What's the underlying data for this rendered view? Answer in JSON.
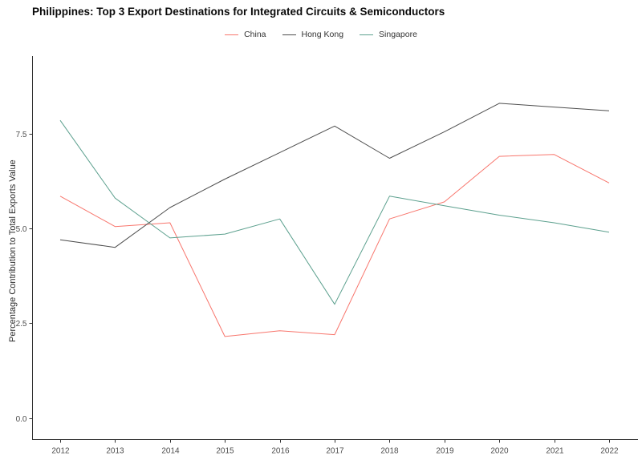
{
  "chart_data": {
    "type": "line",
    "title": "Philippines: Top 3 Export Destinations for Integrated Circuits & Semiconductors",
    "xlabel": "",
    "ylabel": "Percentage Contribution to Total Exports Value",
    "x": [
      2012,
      2013,
      2014,
      2015,
      2016,
      2017,
      2018,
      2019,
      2020,
      2021,
      2022
    ],
    "series": [
      {
        "name": "China",
        "color": "#f8766d",
        "values": [
          5.85,
          5.05,
          5.15,
          2.15,
          2.3,
          2.2,
          5.25,
          5.7,
          6.9,
          6.95,
          6.2
        ]
      },
      {
        "name": "Hong Kong",
        "color": "#4d4d4d",
        "values": [
          4.7,
          4.5,
          5.55,
          6.3,
          7.0,
          7.7,
          6.85,
          7.55,
          8.3,
          8.2,
          8.1
        ]
      },
      {
        "name": "Singapore",
        "color": "#5ca08e",
        "values": [
          7.85,
          5.8,
          4.75,
          4.85,
          5.25,
          3.0,
          5.85,
          5.6,
          5.35,
          5.15,
          4.9
        ]
      }
    ],
    "yticks": [
      0.0,
      2.5,
      5.0,
      7.5
    ],
    "ytick_labels": [
      "0.0",
      "2.5",
      "5.0",
      "7.5"
    ],
    "xtick_labels": [
      "2012",
      "2013",
      "2014",
      "2015",
      "2016",
      "2017",
      "2018",
      "2019",
      "2020",
      "2021",
      "2022"
    ],
    "ylim": [
      0,
      9.6
    ],
    "grid": false,
    "legend_position": "top-center"
  },
  "style": {
    "axis_color": "#333333",
    "tick_label_color": "#4d4d4d",
    "title_color": "#0a0a0a",
    "background": "#ffffff"
  }
}
